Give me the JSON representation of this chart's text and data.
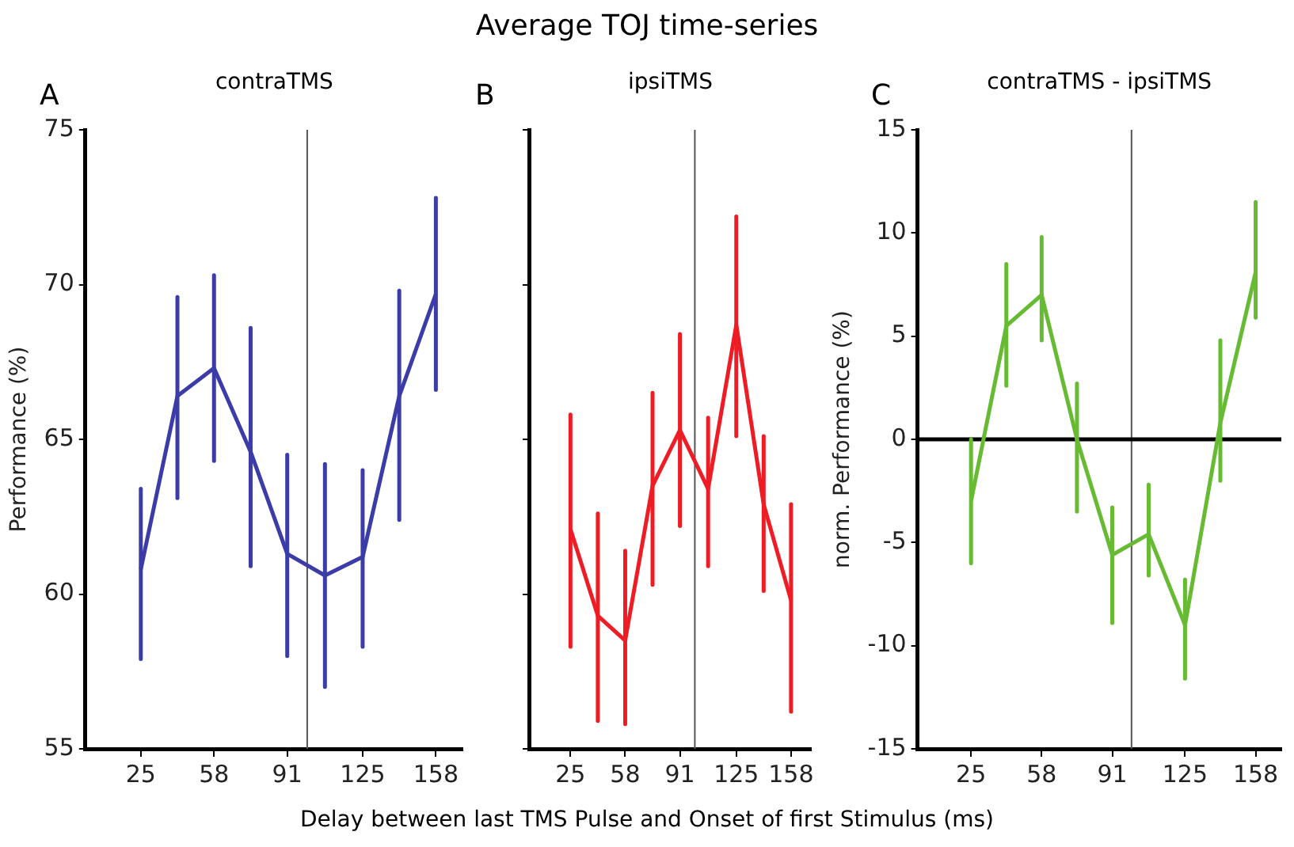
{
  "chart_data": [
    {
      "type": "line",
      "subtitle": "contraTMS",
      "ylabel": "Performance (%)",
      "annotations": [
        "A"
      ],
      "x": [
        25,
        41.5,
        58,
        74.5,
        91,
        108,
        125,
        141.5,
        158
      ],
      "xlim": [
        0,
        170
      ],
      "xticks": [
        25,
        58,
        91,
        125,
        158
      ],
      "ylim": [
        55,
        75
      ],
      "yticks": [
        55,
        60,
        65,
        70,
        75
      ],
      "grid": false,
      "legend": false,
      "marker": "none",
      "line_style": "solid",
      "series": [
        {
          "color": "#3c3ca8",
          "values": [
            60.8,
            66.4,
            67.3,
            64.6,
            61.3,
            60.6,
            61.2,
            66.4,
            69.7
          ],
          "errors": [
            [
              57.9,
              63.4
            ],
            [
              63.1,
              69.6
            ],
            [
              64.3,
              70.3
            ],
            [
              60.9,
              68.6
            ],
            [
              58.0,
              64.5
            ],
            [
              57.0,
              64.2
            ],
            [
              58.3,
              64.0
            ],
            [
              62.4,
              69.8
            ],
            [
              66.6,
              72.8
            ]
          ]
        }
      ],
      "ref_lines": [
        {
          "axis": "x",
          "value": 100,
          "color": "#555555"
        }
      ]
    },
    {
      "type": "line",
      "title": "Average TOJ time-series",
      "subtitle": "ipsiTMS",
      "xlabel": "Delay between last TMS Pulse and Onset of first Stimulus (ms)",
      "annotations": [
        "B"
      ],
      "x": [
        25,
        41.5,
        58,
        74.5,
        91,
        108,
        125,
        141.5,
        158
      ],
      "xlim": [
        0,
        170
      ],
      "xticks": [
        25,
        58,
        91,
        125,
        158
      ],
      "ylim": [
        55,
        75
      ],
      "yticks": [
        55,
        60,
        65,
        70,
        75
      ],
      "tick_labels": "x",
      "grid": false,
      "legend": false,
      "marker": "none",
      "line_style": "solid",
      "series": [
        {
          "color": "#ee1c24",
          "values": [
            62.1,
            59.3,
            58.5,
            63.5,
            65.3,
            63.4,
            68.7,
            62.9,
            59.8
          ],
          "errors": [
            [
              58.3,
              65.8
            ],
            [
              55.9,
              62.6
            ],
            [
              55.8,
              61.4
            ],
            [
              60.3,
              66.5
            ],
            [
              62.2,
              68.4
            ],
            [
              60.9,
              65.7
            ],
            [
              65.1,
              72.2
            ],
            [
              60.1,
              65.1
            ],
            [
              56.2,
              62.9
            ]
          ]
        }
      ],
      "ref_lines": [
        {
          "axis": "x",
          "value": 100,
          "color": "#555555"
        }
      ]
    },
    {
      "type": "line",
      "subtitle": "contraTMS - ipsiTMS",
      "ylabel": "norm. Performance (%)",
      "annotations": [
        "C"
      ],
      "x": [
        25,
        41.5,
        58,
        74.5,
        91,
        108,
        125,
        141.5,
        158
      ],
      "xlim": [
        0,
        170
      ],
      "xticks": [
        25,
        58,
        91,
        125,
        158
      ],
      "ylim": [
        -15,
        15
      ],
      "yticks": [
        -15,
        -10,
        -5,
        0,
        5,
        10,
        15
      ],
      "grid": false,
      "legend": false,
      "marker": "none",
      "line_style": "solid",
      "series": [
        {
          "color": "#66bb33",
          "values": [
            -3.0,
            5.5,
            7.0,
            0,
            -5.6,
            -4.6,
            -9.0,
            0.8,
            8.1
          ],
          "errors": [
            [
              -6.0,
              0
            ],
            [
              2.6,
              8.5
            ],
            [
              4.8,
              9.8
            ],
            [
              -3.5,
              2.7
            ],
            [
              -8.9,
              -3.3
            ],
            [
              -6.6,
              -2.2
            ],
            [
              -11.6,
              -6.8
            ],
            [
              -2.0,
              4.8
            ],
            [
              5.9,
              11.5
            ]
          ]
        }
      ],
      "ref_lines": [
        {
          "axis": "x",
          "value": 100,
          "color": "#555555"
        },
        {
          "axis": "y",
          "value": 0,
          "color": "#000000"
        }
      ]
    }
  ]
}
